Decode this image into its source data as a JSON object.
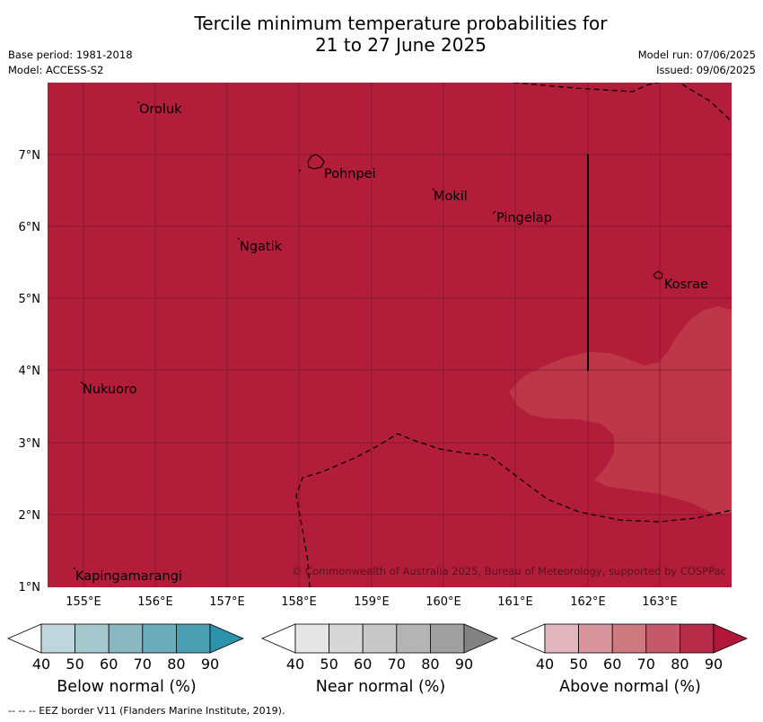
{
  "title_line1": "Tercile minimum temperature probabilities for",
  "title_line2": "21 to 27 June 2025",
  "meta_left": [
    "Base period: 1981-2018",
    "Model: ACCESS-S2"
  ],
  "meta_right": [
    "Model run: 07/06/2025",
    "Issued: 09/06/2025"
  ],
  "map": {
    "lon_ticks": [
      "155°E",
      "156°E",
      "157°E",
      "158°E",
      "159°E",
      "160°E",
      "161°E",
      "162°E",
      "163°E"
    ],
    "lat_ticks": [
      "7°N",
      "6°N",
      "5°N",
      "4°N",
      "3°N",
      "2°N",
      "1°N"
    ],
    "places": [
      "Oroluk",
      "Pohnpei",
      "Mokil",
      "Pingelap",
      "Ngatik",
      "Kosrae",
      "Nukuoro",
      "Kapingamarangi"
    ],
    "copyright": "© Commonwealth of Australia 2025, Bureau of Meteorology, supported by COSPPac",
    "base_category": "Above normal",
    "base_fill_color": "#b21e3a",
    "patch_fill_color": "#bd3749",
    "patch_category_range": "70-80"
  },
  "colorbars": [
    {
      "label": "Below normal (%)",
      "ticks": [
        "40",
        "50",
        "60",
        "70",
        "80",
        "90"
      ],
      "colors": [
        "#ffffff",
        "#c0d6dc",
        "#a5c7ce",
        "#8ab8c2",
        "#6badbb",
        "#4b9fb2",
        "#2d92ab"
      ]
    },
    {
      "label": "Near normal (%)",
      "ticks": [
        "40",
        "50",
        "60",
        "70",
        "80",
        "90"
      ],
      "colors": [
        "#ffffff",
        "#e6e6e6",
        "#d7d7d7",
        "#c8c8c8",
        "#b4b4b4",
        "#a0a0a0",
        "#828282"
      ]
    },
    {
      "label": "Above normal (%)",
      "ticks": [
        "40",
        "50",
        "60",
        "70",
        "80",
        "90"
      ],
      "colors": [
        "#ffffff",
        "#e2b6be",
        "#d8959e",
        "#ce7880",
        "#c5596a",
        "#b62c48",
        "#b2173a"
      ]
    }
  ],
  "footer": "--  --  -- EEZ border V11 (Flanders Marine Institute, 2019)."
}
